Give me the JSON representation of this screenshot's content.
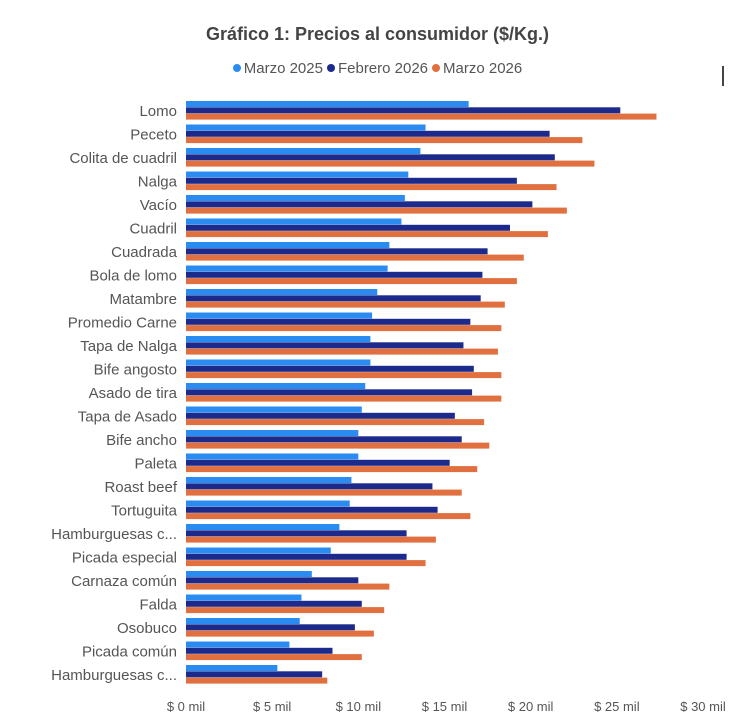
{
  "chart_data": {
    "type": "bar",
    "orientation": "horizontal",
    "title": "Gráfico 1: Precios al consumidor ($/Kg.)",
    "legend_position": "top",
    "grid": false,
    "categories": [
      "Lomo",
      "Peceto",
      "Colita de cuadril",
      "Nalga",
      "Vacío",
      "Cuadril",
      "Cuadrada",
      "Bola de lomo",
      "Matambre",
      "Promedio Carne",
      "Tapa de Nalga",
      "Bife angosto",
      "Asado de tira",
      "Tapa de Asado",
      "Bife ancho",
      "Paleta",
      "Roast beef",
      "Tortuguita",
      "Hamburguesas c...",
      "Picada especial",
      "Carnaza común",
      "Falda",
      "Osobuco",
      "Picada común",
      "Hamburguesas c..."
    ],
    "series": [
      {
        "name": "Marzo 2025",
        "color": "#2a8cf0",
        "values": [
          16.4,
          13.9,
          13.6,
          12.9,
          12.7,
          12.5,
          11.8,
          11.7,
          11.1,
          10.8,
          10.7,
          10.7,
          10.4,
          10.2,
          10.0,
          10.0,
          9.6,
          9.5,
          8.9,
          8.4,
          7.3,
          6.7,
          6.6,
          6.0,
          5.3
        ]
      },
      {
        "name": "Febrero 2026",
        "color": "#1c2a8c",
        "values": [
          25.2,
          21.1,
          21.4,
          19.2,
          20.1,
          18.8,
          17.5,
          17.2,
          17.1,
          16.5,
          16.1,
          16.7,
          16.6,
          15.6,
          16.0,
          15.3,
          14.3,
          14.6,
          12.8,
          12.8,
          10.0,
          10.2,
          9.8,
          8.5,
          7.9
        ]
      },
      {
        "name": "Marzo 2026",
        "color": "#e0703f",
        "values": [
          27.3,
          23.0,
          23.7,
          21.5,
          22.1,
          21.0,
          19.6,
          19.2,
          18.5,
          18.3,
          18.1,
          18.3,
          18.3,
          17.3,
          17.6,
          16.9,
          16.0,
          16.5,
          14.5,
          13.9,
          11.8,
          11.5,
          10.9,
          10.2,
          8.2
        ]
      }
    ],
    "xlim": [
      0,
      30
    ],
    "xticks": [
      0,
      5,
      10,
      15,
      20,
      25,
      30
    ],
    "xtick_labels": [
      "$ 0 mil",
      "$ 5 mil",
      "$ 10 mil",
      "$ 15 mil",
      "$ 20 mil",
      "$ 25 mil",
      "$ 30 mil"
    ],
    "unit": "mil $"
  }
}
